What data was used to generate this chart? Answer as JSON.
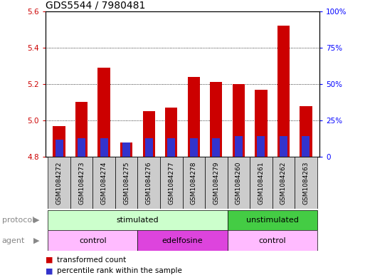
{
  "title": "GDS5544 / 7980481",
  "samples": [
    "GSM1084272",
    "GSM1084273",
    "GSM1084274",
    "GSM1084275",
    "GSM1084276",
    "GSM1084277",
    "GSM1084278",
    "GSM1084279",
    "GSM1084260",
    "GSM1084261",
    "GSM1084262",
    "GSM1084263"
  ],
  "transformed_count": [
    4.97,
    5.1,
    5.29,
    4.88,
    5.05,
    5.07,
    5.24,
    5.21,
    5.2,
    5.17,
    5.52,
    5.08
  ],
  "percentile_rank": [
    12,
    13,
    13,
    10,
    13,
    13,
    13,
    13,
    14,
    14,
    14,
    14
  ],
  "ylim_left": [
    4.8,
    5.6
  ],
  "ylim_right": [
    0,
    100
  ],
  "yticks_left": [
    4.8,
    5.0,
    5.2,
    5.4,
    5.6
  ],
  "yticks_right": [
    0,
    25,
    50,
    75,
    100
  ],
  "bar_color_red": "#cc0000",
  "bar_color_blue": "#3333cc",
  "bar_width": 0.55,
  "blue_bar_width": 0.35,
  "protocol_groups": [
    {
      "label": "stimulated",
      "start": 0,
      "end": 8,
      "color": "#ccffcc"
    },
    {
      "label": "unstimulated",
      "start": 8,
      "end": 12,
      "color": "#44cc44"
    }
  ],
  "agent_groups": [
    {
      "label": "control",
      "start": 0,
      "end": 4,
      "color": "#ffbbff"
    },
    {
      "label": "edelfosine",
      "start": 4,
      "end": 8,
      "color": "#dd44dd"
    },
    {
      "label": "control",
      "start": 8,
      "end": 12,
      "color": "#ffbbff"
    }
  ],
  "title_fontsize": 10,
  "tick_fontsize": 7.5,
  "sample_fontsize": 6.5,
  "row_fontsize": 8,
  "legend_fontsize": 7.5,
  "label_color": "#888888",
  "arrow_color": "#888888"
}
